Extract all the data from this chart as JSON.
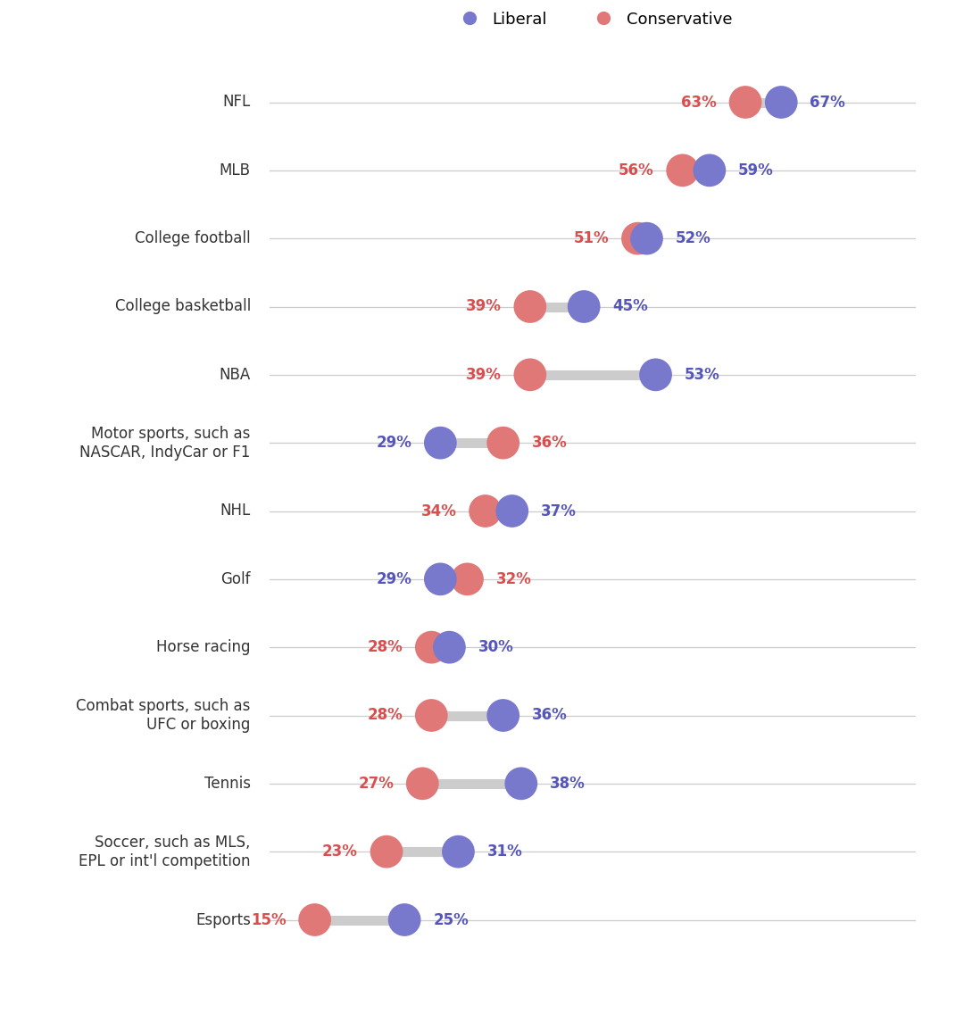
{
  "sports": [
    "NFL",
    "MLB",
    "College football",
    "College basketball",
    "NBA",
    "Motor sports, such as\nNASCAR, IndyCar or F1",
    "NHL",
    "Golf",
    "Horse racing",
    "Combat sports, such as\nUFC or boxing",
    "Tennis",
    "Soccer, such as MLS,\nEPL or int'l competition",
    "Esports"
  ],
  "conservative": [
    63,
    56,
    51,
    39,
    39,
    36,
    34,
    32,
    28,
    28,
    27,
    23,
    15
  ],
  "liberal": [
    67,
    59,
    52,
    45,
    53,
    29,
    37,
    29,
    30,
    36,
    38,
    31,
    25
  ],
  "conservative_color": "#e07878",
  "liberal_color": "#7878cc",
  "connector_color": "#cccccc",
  "background_color": "#ffffff",
  "label_color_conservative": "#d94f4f",
  "label_color_liberal": "#5555bb",
  "dot_size": 700,
  "connector_linewidth": 8,
  "xlim": [
    10,
    82
  ],
  "legend_liberal": "Liberal",
  "legend_conservative": "Conservative",
  "grid_color": "#cccccc",
  "label_fontsize": 12,
  "pct_fontsize": 12
}
